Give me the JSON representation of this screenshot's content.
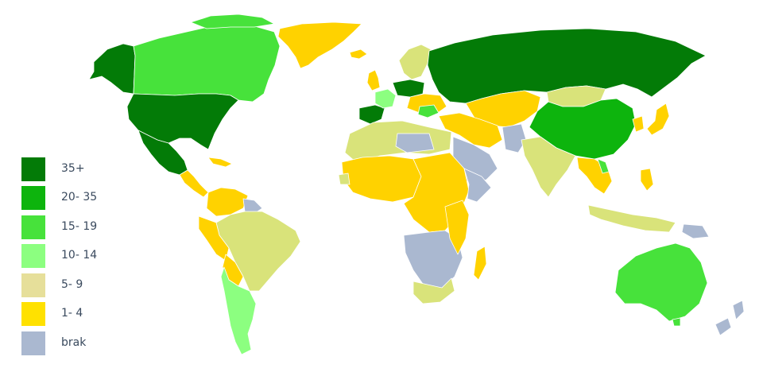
{
  "colors": {
    "c35plus": "#037b07",
    "c20_35": "#0db40d",
    "c15_19": "#47e23b",
    "c10_14": "#8cff80",
    "c5_9": "#d9e37a",
    "c1_4": "#ffd200",
    "nodata": "#aab8d0",
    "ocean": "#ffffff"
  },
  "legend": {
    "items": [
      {
        "label": "35+",
        "color": "#037b07"
      },
      {
        "label": "20- 35",
        "color": "#0db40d"
      },
      {
        "label": "15- 19",
        "color": "#47e23b"
      },
      {
        "label": "10- 14",
        "color": "#8cff80"
      },
      {
        "label": "5- 9",
        "color": "#e6df9a"
      },
      {
        "label": "1- 4",
        "color": "#ffe100"
      },
      {
        "label": "brak",
        "color": "#aab8d0"
      }
    ]
  }
}
